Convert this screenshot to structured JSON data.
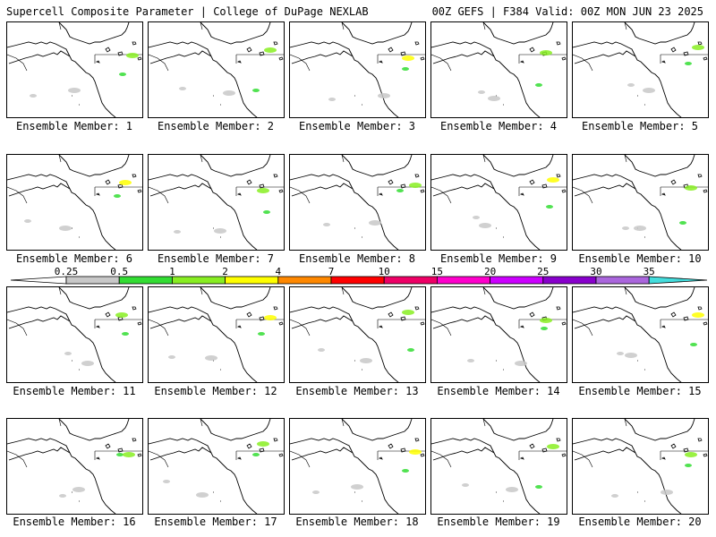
{
  "header": {
    "title_left": "Supercell Composite Parameter | College of DuPage NEXLAB",
    "title_right": "00Z GEFS | F384 Valid: 00Z MON JUN 23 2025"
  },
  "label_prefix": "Ensemble Member: ",
  "members": [
    1,
    2,
    3,
    4,
    5,
    6,
    7,
    8,
    9,
    10,
    11,
    12,
    13,
    14,
    15,
    16,
    17,
    18,
    19,
    20
  ],
  "colorbar": {
    "ticks": [
      "0.25",
      "0.5",
      "1",
      "2",
      "4",
      "7",
      "10",
      "15",
      "20",
      "25",
      "30",
      "35"
    ],
    "colors": [
      "#c8c8c8",
      "#33dd33",
      "#88ee22",
      "#ffff00",
      "#ff8800",
      "#ff0000",
      "#ee0066",
      "#ff00cc",
      "#cc00ff",
      "#8800cc",
      "#aa66dd",
      "#44dddd"
    ]
  }
}
